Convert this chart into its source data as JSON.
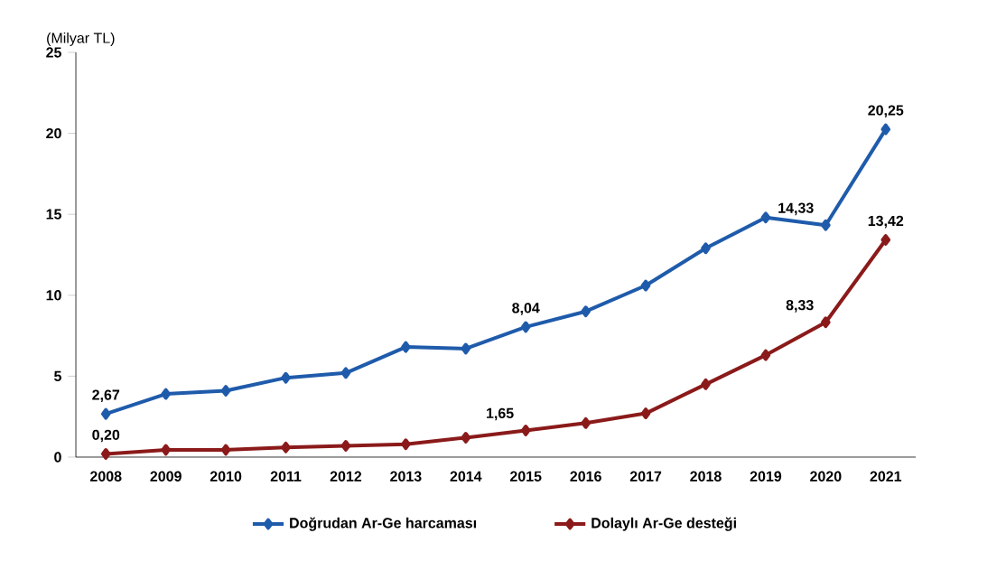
{
  "chart_data": {
    "type": "line",
    "ylabel": "(Milyar TL)",
    "categories": [
      "2008",
      "2009",
      "2010",
      "2011",
      "2012",
      "2013",
      "2014",
      "2015",
      "2016",
      "2017",
      "2018",
      "2019",
      "2020",
      "2021"
    ],
    "series": [
      {
        "name": "Doğrudan Ar-Ge harcaması",
        "color": "#1f5bab",
        "values": [
          2.67,
          3.9,
          4.1,
          4.9,
          5.2,
          6.8,
          6.7,
          8.04,
          9.0,
          10.6,
          12.9,
          14.8,
          14.33,
          20.25
        ],
        "value_labels": [
          "2,67",
          null,
          null,
          null,
          null,
          null,
          null,
          "8,04",
          null,
          null,
          null,
          null,
          "14,33",
          "20,25"
        ]
      },
      {
        "name": "Dolaylı Ar-Ge desteği",
        "color": "#8b1a1a",
        "values": [
          0.2,
          0.45,
          0.45,
          0.6,
          0.7,
          0.8,
          1.2,
          1.65,
          2.1,
          2.7,
          4.5,
          6.3,
          8.33,
          13.42
        ],
        "value_labels": [
          "0,20",
          null,
          null,
          null,
          null,
          null,
          null,
          "1,65",
          null,
          null,
          null,
          null,
          "8,33",
          "13,42"
        ]
      }
    ],
    "ylim": [
      0,
      25
    ],
    "yticks": [
      0,
      5,
      10,
      15,
      20,
      25
    ],
    "grid": false,
    "legend": "bottom",
    "marker": "diamond",
    "line_style": "solid"
  }
}
